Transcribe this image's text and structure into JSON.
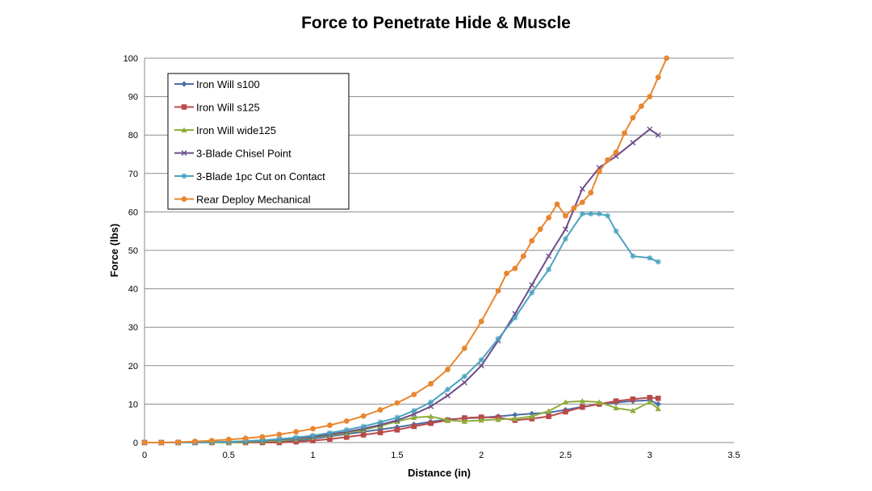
{
  "chart_data": {
    "type": "line",
    "title": "Force to Penetrate Hide & Muscle",
    "xlabel": "Distance (in)",
    "ylabel": "Force (lbs)",
    "xlim": [
      0,
      3.5
    ],
    "ylim": [
      0,
      100
    ],
    "xticks": [
      "0",
      "0.5",
      "1",
      "1.5",
      "2",
      "2.5",
      "3",
      "3.5"
    ],
    "yticks": [
      "0",
      "10",
      "20",
      "30",
      "40",
      "50",
      "60",
      "70",
      "80",
      "90",
      "100"
    ],
    "grid": "horizontal",
    "legend_position": "top-left",
    "series": [
      {
        "name": "Iron Will s100",
        "color": "#4a6fa5",
        "marker": "diamond",
        "x": [
          0,
          0.1,
          0.2,
          0.3,
          0.4,
          0.5,
          0.6,
          0.7,
          0.8,
          0.9,
          1.0,
          1.1,
          1.2,
          1.3,
          1.4,
          1.5,
          1.6,
          1.7,
          1.8,
          1.9,
          2.0,
          2.1,
          2.2,
          2.3,
          2.4,
          2.5,
          2.6,
          2.7,
          2.8,
          2.9,
          3.0,
          3.05
        ],
        "y": [
          0,
          0,
          0,
          0,
          0,
          0,
          0,
          0.1,
          0.2,
          0.5,
          1.0,
          1.6,
          2.2,
          2.8,
          3.4,
          4.0,
          4.7,
          5.4,
          6.0,
          6.3,
          6.5,
          6.8,
          7.2,
          7.5,
          7.8,
          8.5,
          9.3,
          10.0,
          10.4,
          10.8,
          11.0,
          10.0
        ]
      },
      {
        "name": "Iron Will s125",
        "color": "#b84a4a",
        "marker": "square",
        "x": [
          0,
          0.1,
          0.2,
          0.3,
          0.4,
          0.5,
          0.6,
          0.7,
          0.8,
          0.9,
          1.0,
          1.1,
          1.2,
          1.3,
          1.4,
          1.5,
          1.6,
          1.7,
          1.8,
          1.9,
          2.0,
          2.1,
          2.2,
          2.3,
          2.4,
          2.5,
          2.6,
          2.7,
          2.8,
          2.9,
          3.0,
          3.05
        ],
        "y": [
          0,
          0,
          0,
          0,
          0,
          0,
          0,
          0,
          0,
          0.2,
          0.5,
          0.9,
          1.4,
          2.0,
          2.6,
          3.3,
          4.2,
          5.0,
          5.8,
          6.4,
          6.6,
          6.5,
          5.8,
          6.2,
          6.8,
          8.0,
          9.2,
          10.0,
          10.8,
          11.3,
          11.7,
          11.5
        ]
      },
      {
        "name": "Iron Will wide125",
        "color": "#8fad3c",
        "marker": "triangle",
        "x": [
          0,
          0.1,
          0.2,
          0.3,
          0.4,
          0.5,
          0.6,
          0.7,
          0.8,
          0.9,
          1.0,
          1.1,
          1.2,
          1.3,
          1.4,
          1.5,
          1.6,
          1.7,
          1.8,
          1.9,
          2.0,
          2.1,
          2.2,
          2.3,
          2.4,
          2.5,
          2.6,
          2.7,
          2.8,
          2.9,
          3.0,
          3.05
        ],
        "y": [
          0,
          0,
          0,
          0,
          0,
          0,
          0.1,
          0.3,
          0.5,
          0.9,
          1.3,
          1.9,
          2.5,
          3.3,
          4.3,
          5.5,
          6.5,
          6.8,
          5.8,
          5.5,
          5.8,
          6.0,
          6.2,
          6.8,
          8.2,
          10.5,
          10.8,
          10.5,
          9.0,
          8.3,
          10.5,
          8.8
        ]
      },
      {
        "name": "3-Blade Chisel Point",
        "color": "#6b4c8a",
        "marker": "x",
        "x": [
          0,
          0.1,
          0.2,
          0.3,
          0.4,
          0.5,
          0.6,
          0.7,
          0.8,
          0.9,
          1.0,
          1.1,
          1.2,
          1.3,
          1.4,
          1.5,
          1.6,
          1.7,
          1.8,
          1.9,
          2.0,
          2.1,
          2.2,
          2.3,
          2.4,
          2.5,
          2.6,
          2.7,
          2.8,
          2.9,
          3.0,
          3.05
        ],
        "y": [
          0,
          0,
          0,
          0,
          0.1,
          0.2,
          0.3,
          0.5,
          0.8,
          1.1,
          1.5,
          2.1,
          2.8,
          3.6,
          4.6,
          5.8,
          7.4,
          9.4,
          12.2,
          15.6,
          20.0,
          26.5,
          33.5,
          41.0,
          48.5,
          55.5,
          66.0,
          71.5,
          74.5,
          78.0,
          81.5,
          80.0
        ]
      },
      {
        "name": "3-Blade 1pc Cut on Contact",
        "color": "#4aa3c0",
        "marker": "star",
        "x": [
          0,
          0.1,
          0.2,
          0.3,
          0.4,
          0.5,
          0.6,
          0.7,
          0.8,
          0.9,
          1.0,
          1.1,
          1.2,
          1.3,
          1.4,
          1.5,
          1.6,
          1.7,
          1.8,
          1.9,
          2.0,
          2.1,
          2.2,
          2.3,
          2.4,
          2.5,
          2.6,
          2.65,
          2.7,
          2.75,
          2.8,
          2.9,
          3.0,
          3.05
        ],
        "y": [
          0,
          0,
          0,
          0,
          0.1,
          0.2,
          0.4,
          0.6,
          0.9,
          1.3,
          1.8,
          2.5,
          3.3,
          4.2,
          5.3,
          6.5,
          8.3,
          10.5,
          13.8,
          17.2,
          21.5,
          27.0,
          32.5,
          39.0,
          45.0,
          53.0,
          59.5,
          59.5,
          59.5,
          59.0,
          55.0,
          48.5,
          48.0,
          47.0
        ]
      },
      {
        "name": "Rear Deploy Mechanical",
        "color": "#e8862f",
        "marker": "circle",
        "x": [
          0,
          0.1,
          0.2,
          0.3,
          0.4,
          0.5,
          0.6,
          0.7,
          0.8,
          0.9,
          1.0,
          1.1,
          1.2,
          1.3,
          1.4,
          1.5,
          1.6,
          1.7,
          1.8,
          1.9,
          2.0,
          2.1,
          2.15,
          2.2,
          2.25,
          2.3,
          2.35,
          2.4,
          2.45,
          2.5,
          2.55,
          2.6,
          2.65,
          2.7,
          2.75,
          2.8,
          2.85,
          2.9,
          2.95,
          3.0,
          3.05,
          3.1
        ],
        "y": [
          0,
          0,
          0.1,
          0.3,
          0.5,
          0.8,
          1.1,
          1.5,
          2.1,
          2.8,
          3.6,
          4.5,
          5.6,
          6.9,
          8.5,
          10.3,
          12.5,
          15.3,
          19.0,
          24.5,
          31.5,
          39.5,
          44.0,
          45.3,
          48.5,
          52.5,
          55.5,
          58.5,
          62.0,
          59.0,
          61.0,
          62.5,
          65.0,
          70.5,
          73.5,
          75.5,
          80.5,
          84.5,
          87.5,
          90.0,
          95.0,
          100.0
        ]
      }
    ]
  }
}
